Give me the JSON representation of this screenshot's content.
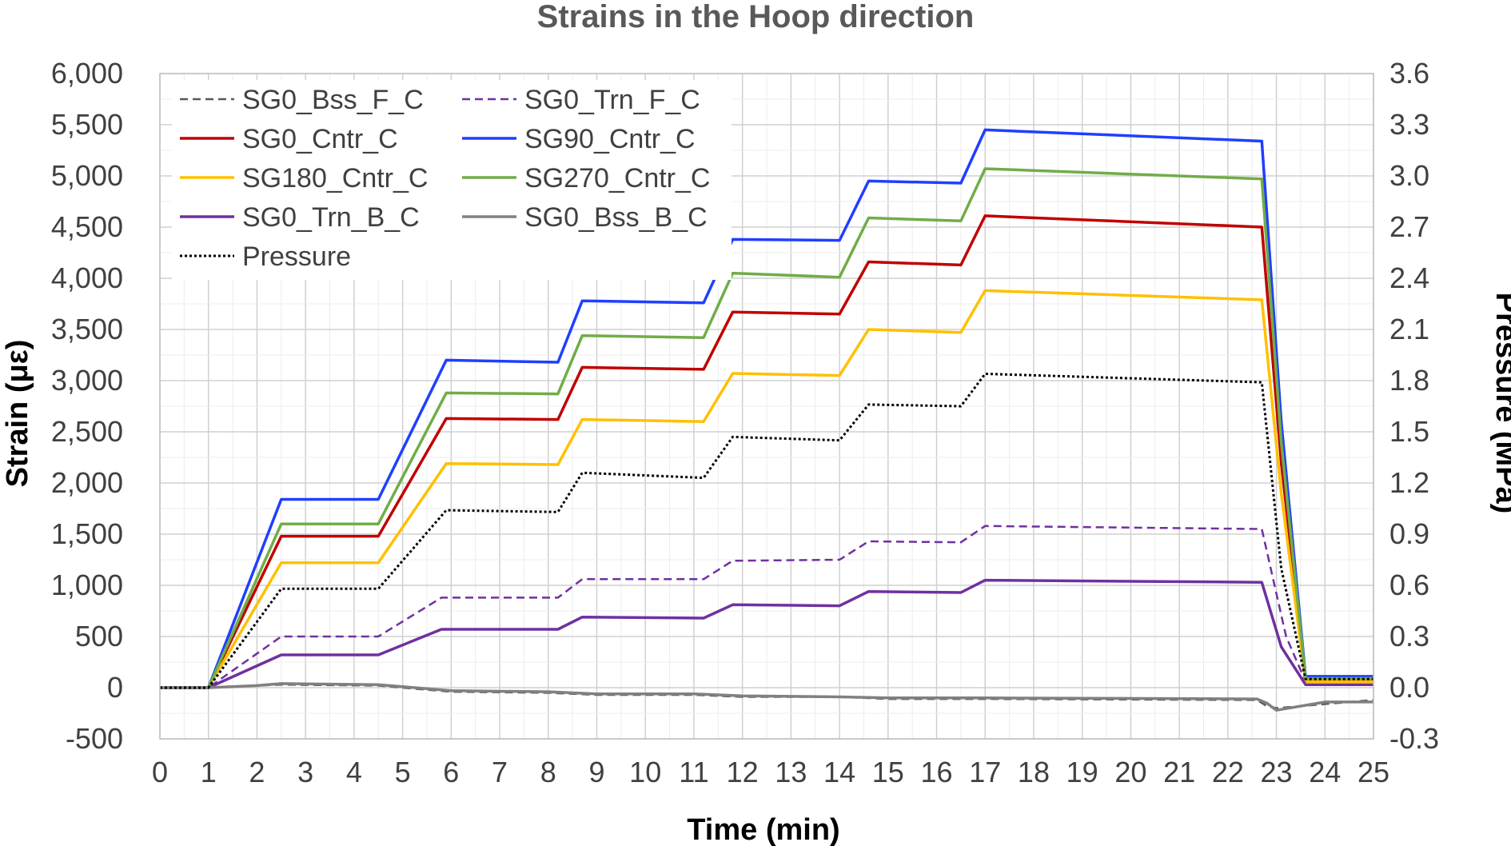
{
  "chart_data": {
    "type": "line",
    "title": "Strains in the Hoop direction",
    "xlabel": "Time (min)",
    "ylabel": "Strain (με)",
    "y2label": "Pressure (MPa)",
    "xlim": [
      0,
      25
    ],
    "ylim": [
      -500,
      6000
    ],
    "y2lim": [
      -0.3,
      3.6
    ],
    "x_ticks": [
      "0",
      "1",
      "2",
      "3",
      "4",
      "5",
      "6",
      "7",
      "8",
      "9",
      "10",
      "11",
      "12",
      "13",
      "14",
      "15",
      "16",
      "17",
      "18",
      "19",
      "20",
      "21",
      "22",
      "23",
      "24",
      "25"
    ],
    "y_ticks": [
      "6,000",
      "5,500",
      "5,000",
      "4,500",
      "4,000",
      "3,500",
      "3,000",
      "2,500",
      "2,000",
      "1,500",
      "1,000",
      "500",
      "0",
      "-500"
    ],
    "y2_ticks": [
      "3.6",
      "3.3",
      "3.0",
      "2.7",
      "2.4",
      "2.1",
      "1.8",
      "1.5",
      "1.2",
      "0.9",
      "0.6",
      "0.3",
      "0.0",
      "-0.3"
    ],
    "grid": true,
    "legend_position": "top-left",
    "series": [
      {
        "name": "SG0_Bss_F_C",
        "color": "#595959",
        "dash": "dashed",
        "axis": "left",
        "x": [
          0,
          1,
          2,
          2.5,
          4.5,
          5,
          6,
          8,
          9,
          11,
          12,
          14,
          15,
          17,
          22.6,
          22.8,
          23,
          25
        ],
        "y": [
          0,
          0,
          20,
          30,
          20,
          0,
          -40,
          -50,
          -70,
          -70,
          -90,
          -90,
          -110,
          -110,
          -120,
          -180,
          -200,
          -120
        ]
      },
      {
        "name": "SG0_Trn_F_C",
        "color": "#7030A0",
        "dash": "dashed",
        "axis": "left",
        "x": [
          0,
          1,
          2.5,
          4.5,
          5.8,
          8.2,
          8.7,
          11.2,
          11.8,
          14,
          14.6,
          16.5,
          17,
          22.7,
          23.2,
          23.6,
          25
        ],
        "y": [
          0,
          0,
          500,
          500,
          880,
          880,
          1060,
          1060,
          1240,
          1250,
          1430,
          1420,
          1580,
          1550,
          500,
          60,
          60
        ]
      },
      {
        "name": "SG0_Cntr_C",
        "color": "#C00000",
        "dash": "solid",
        "axis": "left",
        "x": [
          0,
          1,
          2.5,
          4.5,
          5.9,
          8.2,
          8.7,
          11.2,
          11.8,
          14,
          14.6,
          16.5,
          17,
          22.7,
          23.1,
          23.6,
          25
        ],
        "y": [
          0,
          0,
          1480,
          1480,
          2630,
          2620,
          3130,
          3110,
          3670,
          3650,
          4160,
          4130,
          4610,
          4500,
          2200,
          80,
          80
        ]
      },
      {
        "name": "SG90_Cntr_C",
        "color": "#1F3FFF",
        "dash": "solid",
        "axis": "left",
        "x": [
          0,
          1,
          2.5,
          4.5,
          5.9,
          8.2,
          8.7,
          11.2,
          11.8,
          14,
          14.6,
          16.5,
          17,
          22.7,
          23.1,
          23.6,
          25
        ],
        "y": [
          0,
          0,
          1840,
          1840,
          3200,
          3180,
          3780,
          3760,
          4380,
          4370,
          4950,
          4930,
          5450,
          5340,
          2600,
          110,
          110
        ]
      },
      {
        "name": "SG180_Cntr_C",
        "color": "#FFC000",
        "dash": "solid",
        "axis": "left",
        "x": [
          0,
          1,
          2.5,
          4.5,
          5.9,
          8.2,
          8.7,
          11.2,
          11.8,
          14,
          14.6,
          16.5,
          17,
          22.7,
          23.1,
          23.6,
          25
        ],
        "y": [
          0,
          0,
          1220,
          1220,
          2190,
          2180,
          2620,
          2600,
          3070,
          3050,
          3500,
          3470,
          3880,
          3790,
          1900,
          60,
          60
        ]
      },
      {
        "name": "SG270_Cntr_C",
        "color": "#70AD47",
        "dash": "solid",
        "axis": "left",
        "x": [
          0,
          1,
          2.5,
          4.5,
          5.9,
          8.2,
          8.7,
          11.2,
          11.8,
          14,
          14.6,
          16.5,
          17,
          22.7,
          23.1,
          23.6,
          25
        ],
        "y": [
          0,
          0,
          1600,
          1600,
          2880,
          2870,
          3440,
          3420,
          4050,
          4010,
          4590,
          4560,
          5070,
          4970,
          2400,
          90,
          90
        ]
      },
      {
        "name": "SG0_Trn_B_C",
        "color": "#7030A0",
        "dash": "solid",
        "axis": "left",
        "x": [
          0,
          1,
          2.5,
          4.5,
          5.8,
          8.2,
          8.7,
          11.2,
          11.8,
          14,
          14.6,
          16.5,
          17,
          22.7,
          23.1,
          23.6,
          25
        ],
        "y": [
          0,
          0,
          320,
          320,
          570,
          570,
          690,
          680,
          810,
          800,
          940,
          930,
          1050,
          1030,
          400,
          30,
          30
        ]
      },
      {
        "name": "SG0_Bss_B_C",
        "color": "#808080",
        "dash": "solid",
        "axis": "left",
        "x": [
          0,
          1,
          2,
          2.5,
          4.5,
          5,
          6,
          8,
          9,
          11,
          12,
          14,
          15,
          17,
          22.6,
          22.8,
          23,
          24,
          25
        ],
        "y": [
          0,
          0,
          20,
          40,
          30,
          10,
          -30,
          -40,
          -60,
          -60,
          -80,
          -90,
          -100,
          -100,
          -110,
          -150,
          -220,
          -140,
          -140
        ]
      },
      {
        "name": "Pressure",
        "color": "#000000",
        "dash": "dotted",
        "axis": "right",
        "x": [
          0,
          1,
          2.5,
          4.5,
          5.9,
          8.2,
          8.7,
          11.2,
          11.8,
          14,
          14.6,
          16.5,
          17,
          22.7,
          23.1,
          23.6,
          25
        ],
        "y": [
          0,
          0,
          0.58,
          0.58,
          1.04,
          1.03,
          1.26,
          1.23,
          1.47,
          1.45,
          1.66,
          1.65,
          1.84,
          1.79,
          0.7,
          0.05,
          0.05
        ]
      }
    ]
  }
}
